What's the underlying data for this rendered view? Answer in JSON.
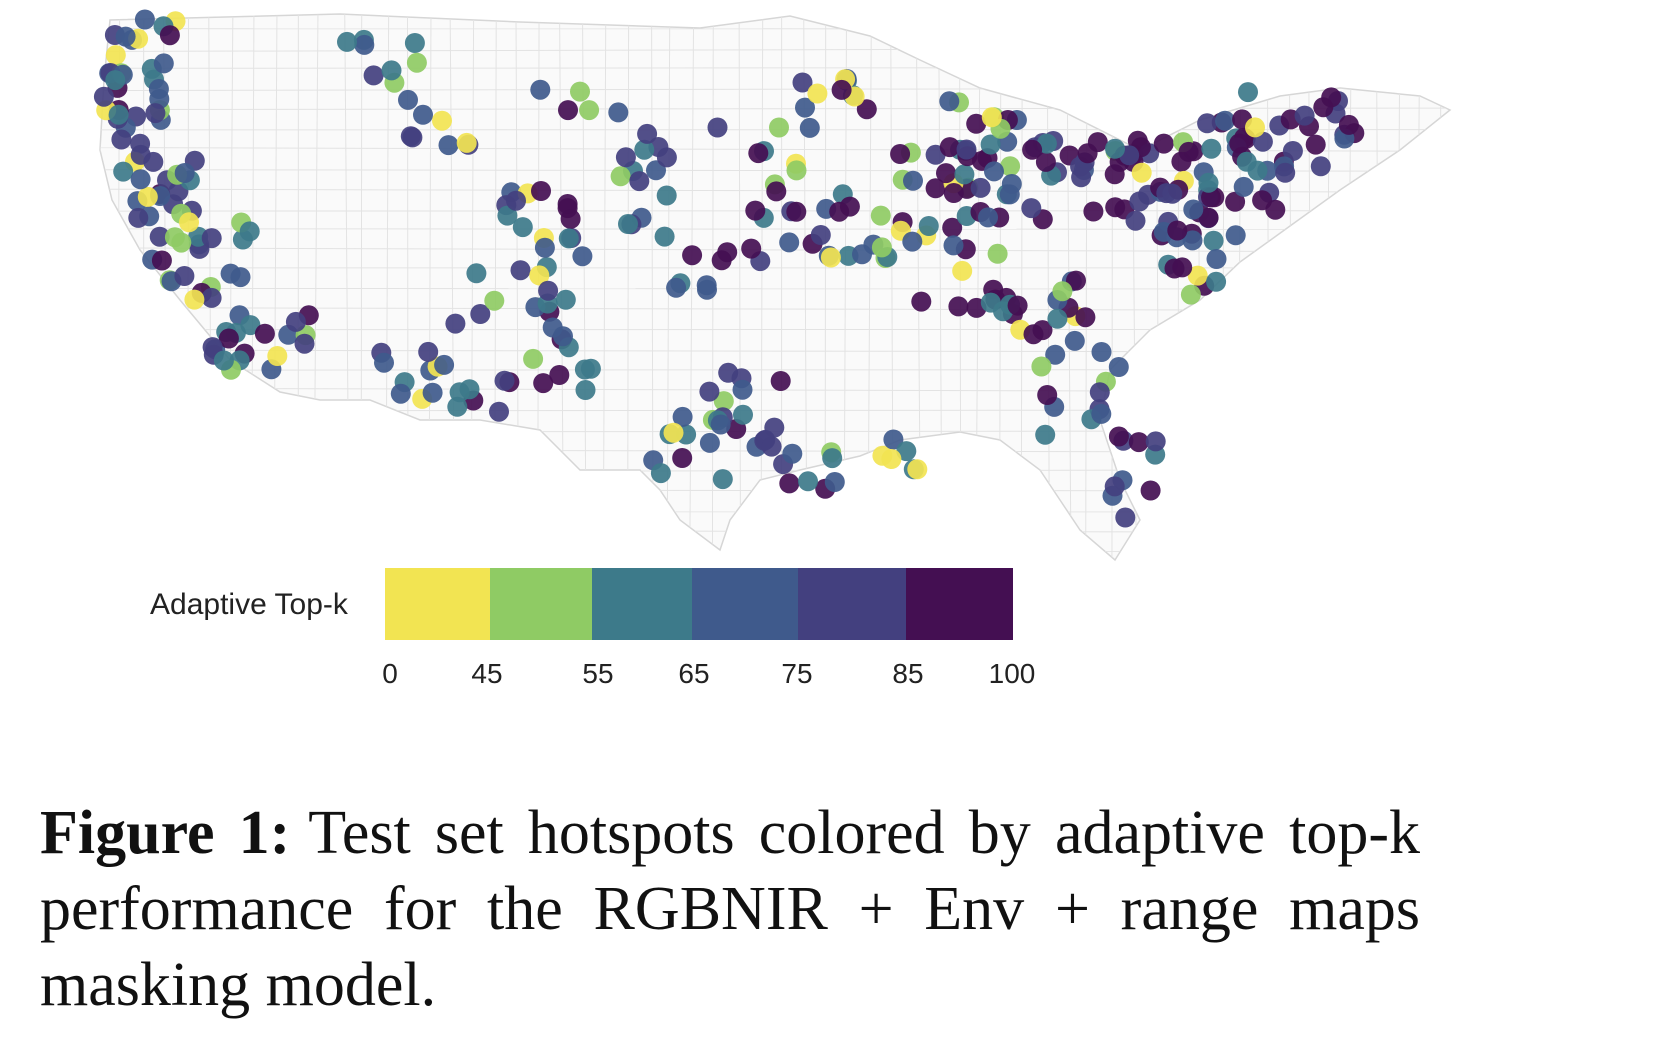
{
  "legend": {
    "title": "Adaptive Top-k",
    "bins": [
      {
        "from": 0,
        "to": 45,
        "color": "#f2e452"
      },
      {
        "from": 45,
        "to": 55,
        "color": "#8fcb64"
      },
      {
        "from": 55,
        "to": 65,
        "color": "#3d7a8a"
      },
      {
        "from": 65,
        "to": 75,
        "color": "#3f5a8c"
      },
      {
        "from": 75,
        "to": 85,
        "color": "#43407f"
      },
      {
        "from": 85,
        "to": 100,
        "color": "#440f52"
      }
    ],
    "ticks": [
      "0",
      "45",
      "55",
      "65",
      "75",
      "85",
      "100"
    ]
  },
  "caption": {
    "label": "Figure 1:",
    "text": "Test set hotspots colored by adaptive top-k performance for the RGBNIR + Env + range maps masking model."
  }
}
